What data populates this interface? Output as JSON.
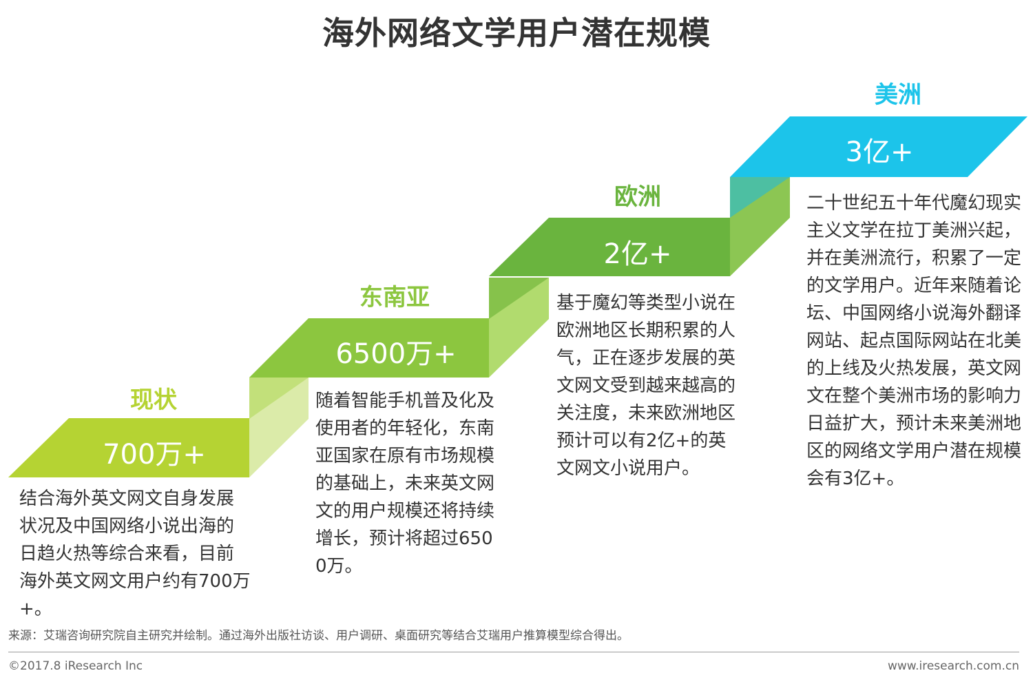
{
  "title": "海外网络文学用户潜在规模",
  "steps": [
    {
      "region": "现状",
      "value": "700万+",
      "color": "#b5d333",
      "description": "结合海外英文网文自身发展状况及中国网络小说出海的日趋火热等综合来看，目前海外英文网文用户约有700万+。"
    },
    {
      "region": "东南亚",
      "value": "6500万+",
      "color": "#8cc63f",
      "description": "随着智能手机普及化及使用者的年轻化，东南亚国家在原有市场规模的基础上，未来英文网文的用户规模还将持续增长，预计将超过6500万。"
    },
    {
      "region": "欧洲",
      "value": "2亿+",
      "color": "#6ab43e",
      "description": "基于魔幻等类型小说在欧洲地区长期积累的人气，正在逐步发展的英文网文受到越来越高的关注度，未来欧洲地区预计可以有2亿+的英文网文小说用户。"
    },
    {
      "region": "美洲",
      "value": "3亿+",
      "color": "#1cc4ea",
      "description": "二十世纪五十年代魔幻现实主义文学在拉丁美洲兴起，并在美洲流行，积累了一定的文学用户。近年来随着论坛、中国网络小说海外翻译网站、起点国际网站在北美的上线及火热发展，英文网文在整个美洲市场的影响力日益扩大，预计未来美洲地区的网络文学用户潜在规模会有3亿+。"
    }
  ],
  "source": "来源：艾瑞咨询研究院自主研究并绘制。通过海外出版社访谈、用户调研、桌面研究等结合艾瑞用户推算模型综合得出。",
  "copyright": "©2017.8 iResearch Inc",
  "website": "www.iresearch.com.cn"
}
